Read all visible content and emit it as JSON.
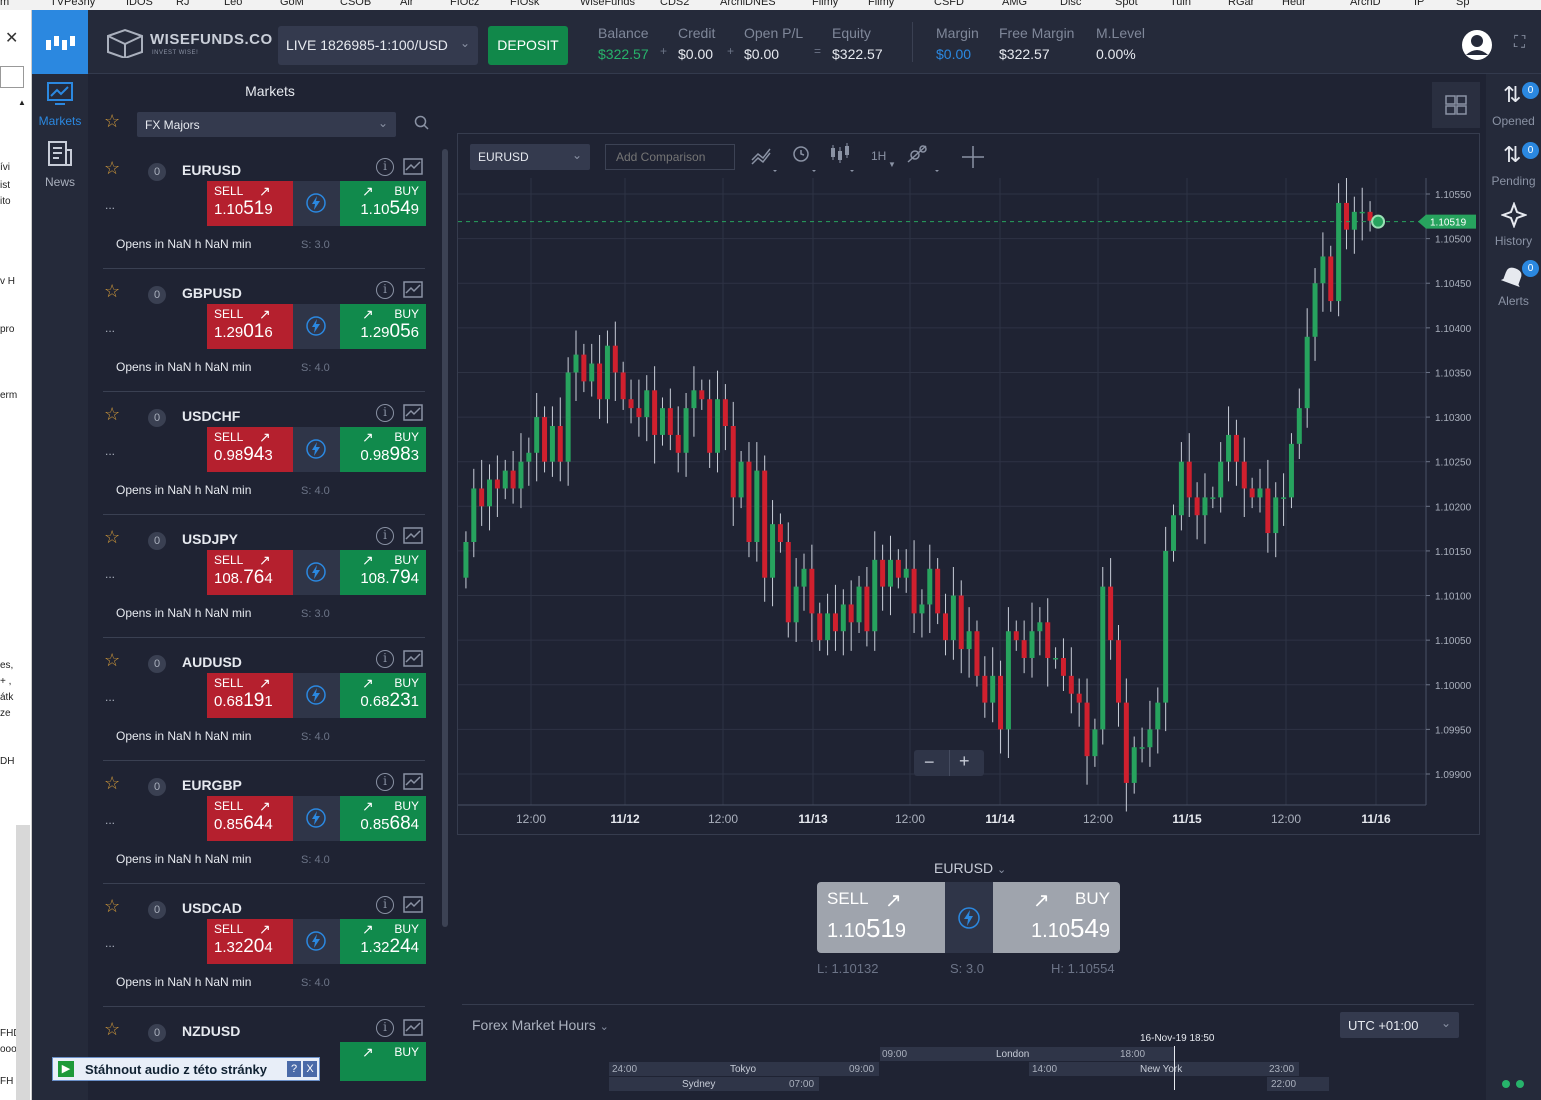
{
  "browser": {
    "bookmarks": [
      "m",
      "TVPe3ny",
      "IDOS",
      "RJ",
      "Leo",
      "GoM",
      "CSOB",
      "Air",
      "FIOcz",
      "FIOsk",
      "WiseFunds",
      "CDS2",
      "ArchiDNES",
      "Filmy",
      "Filmy",
      "CSFD",
      "AMG",
      "Disc",
      "Spot",
      "Tuln",
      "RGar",
      "Heur",
      "ArchD",
      "IP",
      "Sp"
    ],
    "left_strip": [
      "ívi",
      "ist",
      "ito",
      "v H",
      "pro",
      "erm",
      "es,",
      "+ ,",
      "átk",
      "ze",
      "DH",
      "FHD",
      "ooo",
      "FH"
    ],
    "audio_plugin": {
      "label": "Stáhnout audio z této stránky",
      "help": "?",
      "close": "X"
    }
  },
  "header": {
    "brand": "WISEFUNDS.CO",
    "tagline": "INVEST WISE!",
    "account": "LIVE 1826985-1:100/USD",
    "deposit": "DEPOSIT",
    "stats": [
      {
        "label": "Balance",
        "value": "$322.57",
        "color": "#27b36b"
      },
      {
        "label": "Credit",
        "value": "$0.00",
        "color": "#e6e9ef"
      },
      {
        "label": "Open P/L",
        "value": "$0.00",
        "color": "#e6e9ef"
      },
      {
        "label": "Equity",
        "value": "$322.57",
        "color": "#e6e9ef"
      },
      {
        "label": "Margin",
        "value": "$0.00",
        "color": "#2b88e0"
      },
      {
        "label": "Free Margin",
        "value": "$322.57",
        "color": "#e6e9ef"
      },
      {
        "label": "M.Level",
        "value": "0.00%",
        "color": "#e6e9ef"
      }
    ],
    "ops": [
      "+",
      "+",
      "="
    ]
  },
  "leftnav": {
    "markets": "Markets",
    "news": "News"
  },
  "markets": {
    "title": "Markets",
    "filter": "FX Majors",
    "sell_label": "SELL",
    "buy_label": "BUY",
    "opens_text": "Opens in NaN h NaN min",
    "items": [
      {
        "symbol": "EURUSD",
        "count": "0",
        "dots": "...",
        "sell": [
          "1.10",
          "51",
          "9"
        ],
        "buy": [
          "1.10",
          "54",
          "9"
        ],
        "spread": "S: 3.0"
      },
      {
        "symbol": "GBPUSD",
        "count": "0",
        "dots": "...",
        "sell": [
          "1.29",
          "01",
          "6"
        ],
        "buy": [
          "1.29",
          "05",
          "6"
        ],
        "spread": "S: 4.0"
      },
      {
        "symbol": "USDCHF",
        "count": "0",
        "dots": "...",
        "sell": [
          "0.98",
          "94",
          "3"
        ],
        "buy": [
          "0.98",
          "98",
          "3"
        ],
        "spread": "S: 4.0"
      },
      {
        "symbol": "USDJPY",
        "count": "0",
        "dots": "...",
        "sell": [
          "108.",
          "76",
          "4"
        ],
        "buy": [
          "108.",
          "79",
          "4"
        ],
        "spread": "S: 3.0"
      },
      {
        "symbol": "AUDUSD",
        "count": "0",
        "dots": "...",
        "sell": [
          "0.68",
          "19",
          "1"
        ],
        "buy": [
          "0.68",
          "23",
          "1"
        ],
        "spread": "S: 4.0"
      },
      {
        "symbol": "EURGBP",
        "count": "0",
        "dots": "...",
        "sell": [
          "0.85",
          "64",
          "4"
        ],
        "buy": [
          "0.85",
          "68",
          "4"
        ],
        "spread": "S: 4.0"
      },
      {
        "symbol": "USDCAD",
        "count": "0",
        "dots": "...",
        "sell": [
          "1.32",
          "20",
          "4"
        ],
        "buy": [
          "1.32",
          "24",
          "4"
        ],
        "spread": "S: 4.0"
      },
      {
        "symbol": "NZDUSD",
        "count": "0",
        "dots": "",
        "sell": [
          "",
          "",
          ""
        ],
        "buy": [
          "",
          "",
          ""
        ],
        "spread": ""
      }
    ]
  },
  "chart_toolbar": {
    "symbol": "EURUSD",
    "comparison_placeholder": "Add Comparison",
    "timeframe": "1H"
  },
  "chart_data": {
    "type": "candlestick",
    "symbol": "EURUSD",
    "timeframe": "1H",
    "current_price": "1.10519",
    "y_ticks": [
      "1.10550",
      "1.10500",
      "1.10450",
      "1.10400",
      "1.10350",
      "1.10300",
      "1.10250",
      "1.10200",
      "1.10150",
      "1.10100",
      "1.10050",
      "1.10000",
      "1.09950",
      "1.09900"
    ],
    "x_ticks": [
      {
        "label": "12:00",
        "bold": false
      },
      {
        "label": "11/12",
        "bold": true
      },
      {
        "label": "12:00",
        "bold": false
      },
      {
        "label": "11/13",
        "bold": true
      },
      {
        "label": "12:00",
        "bold": false
      },
      {
        "label": "11/14",
        "bold": true
      },
      {
        "label": "12:00",
        "bold": false
      },
      {
        "label": "11/15",
        "bold": true
      },
      {
        "label": "12:00",
        "bold": false
      },
      {
        "label": "11/16",
        "bold": true
      }
    ],
    "closes": [
      1.1016,
      1.1022,
      1.102,
      1.1023,
      1.1022,
      1.1024,
      1.1022,
      1.1025,
      1.1026,
      1.103,
      1.1025,
      1.1029,
      1.1025,
      1.1035,
      1.1037,
      1.1034,
      1.1036,
      1.1032,
      1.1038,
      1.1035,
      1.1032,
      1.1031,
      1.103,
      1.1033,
      1.1028,
      1.1031,
      1.1028,
      1.1026,
      1.1031,
      1.1033,
      1.1032,
      1.1026,
      1.1032,
      1.1029,
      1.1021,
      1.1025,
      1.1016,
      1.1024,
      1.1012,
      1.1018,
      1.1016,
      1.1007,
      1.1011,
      1.1013,
      1.1008,
      1.1005,
      1.1008,
      1.1006,
      1.1009,
      1.1007,
      1.1011,
      1.1006,
      1.1014,
      1.1011,
      1.1014,
      1.1012,
      1.1013,
      1.1008,
      1.1009,
      1.1013,
      1.1008,
      1.1005,
      1.101,
      1.1004,
      1.1006,
      1.1001,
      1.0998,
      1.1001,
      1.0995,
      1.1006,
      1.1005,
      1.1003,
      1.1006,
      1.1007,
      1.1003,
      1.1003,
      1.1001,
      1.0999,
      1.0998,
      1.0992,
      1.0995,
      1.1011,
      1.1005,
      1.0998,
      1.0989,
      1.0993,
      1.0993,
      1.0995,
      1.0998,
      1.1015,
      1.1019,
      1.1025,
      1.1021,
      1.1019,
      1.1021,
      1.1021,
      1.1025,
      1.1028,
      1.1025,
      1.1022,
      1.1021,
      1.1022,
      1.1017,
      1.1021,
      1.1021,
      1.1027,
      1.1031,
      1.1039,
      1.1045,
      1.1048,
      1.1043,
      1.1054,
      1.1051,
      1.1053,
      1.1053,
      1.1052
    ]
  },
  "chart_zoom": {
    "minus": "−",
    "plus": "+"
  },
  "trade": {
    "symbol": "EURUSD",
    "sell_label": "SELL",
    "buy_label": "BUY",
    "sell": [
      "1.10",
      "51",
      "9"
    ],
    "buy": [
      "1.10",
      "54",
      "9"
    ],
    "low": "L: 1.10132",
    "spread": "S: 3.0",
    "high": "H: 1.10554"
  },
  "market_hours": {
    "title": "Forex Market Hours",
    "timezone": "UTC +01:00",
    "now": "16-Nov-19 18:50",
    "london": {
      "name": "London",
      "start": "09:00",
      "end": "18:00"
    },
    "tokyo": {
      "name": "Tokyo",
      "start": "24:00",
      "end": "09:00"
    },
    "sydney": {
      "name": "Sydney",
      "end": "07:00"
    },
    "newyork": {
      "name": "New York",
      "start": "14:00",
      "end": "23:00"
    },
    "sydney2_start": "22:00"
  },
  "rightnav": {
    "opened": {
      "label": "Opened",
      "count": "0"
    },
    "pending": {
      "label": "Pending",
      "count": "0"
    },
    "history": {
      "label": "History"
    },
    "alerts": {
      "label": "Alerts",
      "count": "0"
    }
  },
  "colors": {
    "sell": "#b5202e",
    "buy": "#118a4c",
    "accent": "#2b88e0",
    "up": "#27a35e",
    "down": "#d0202e"
  }
}
